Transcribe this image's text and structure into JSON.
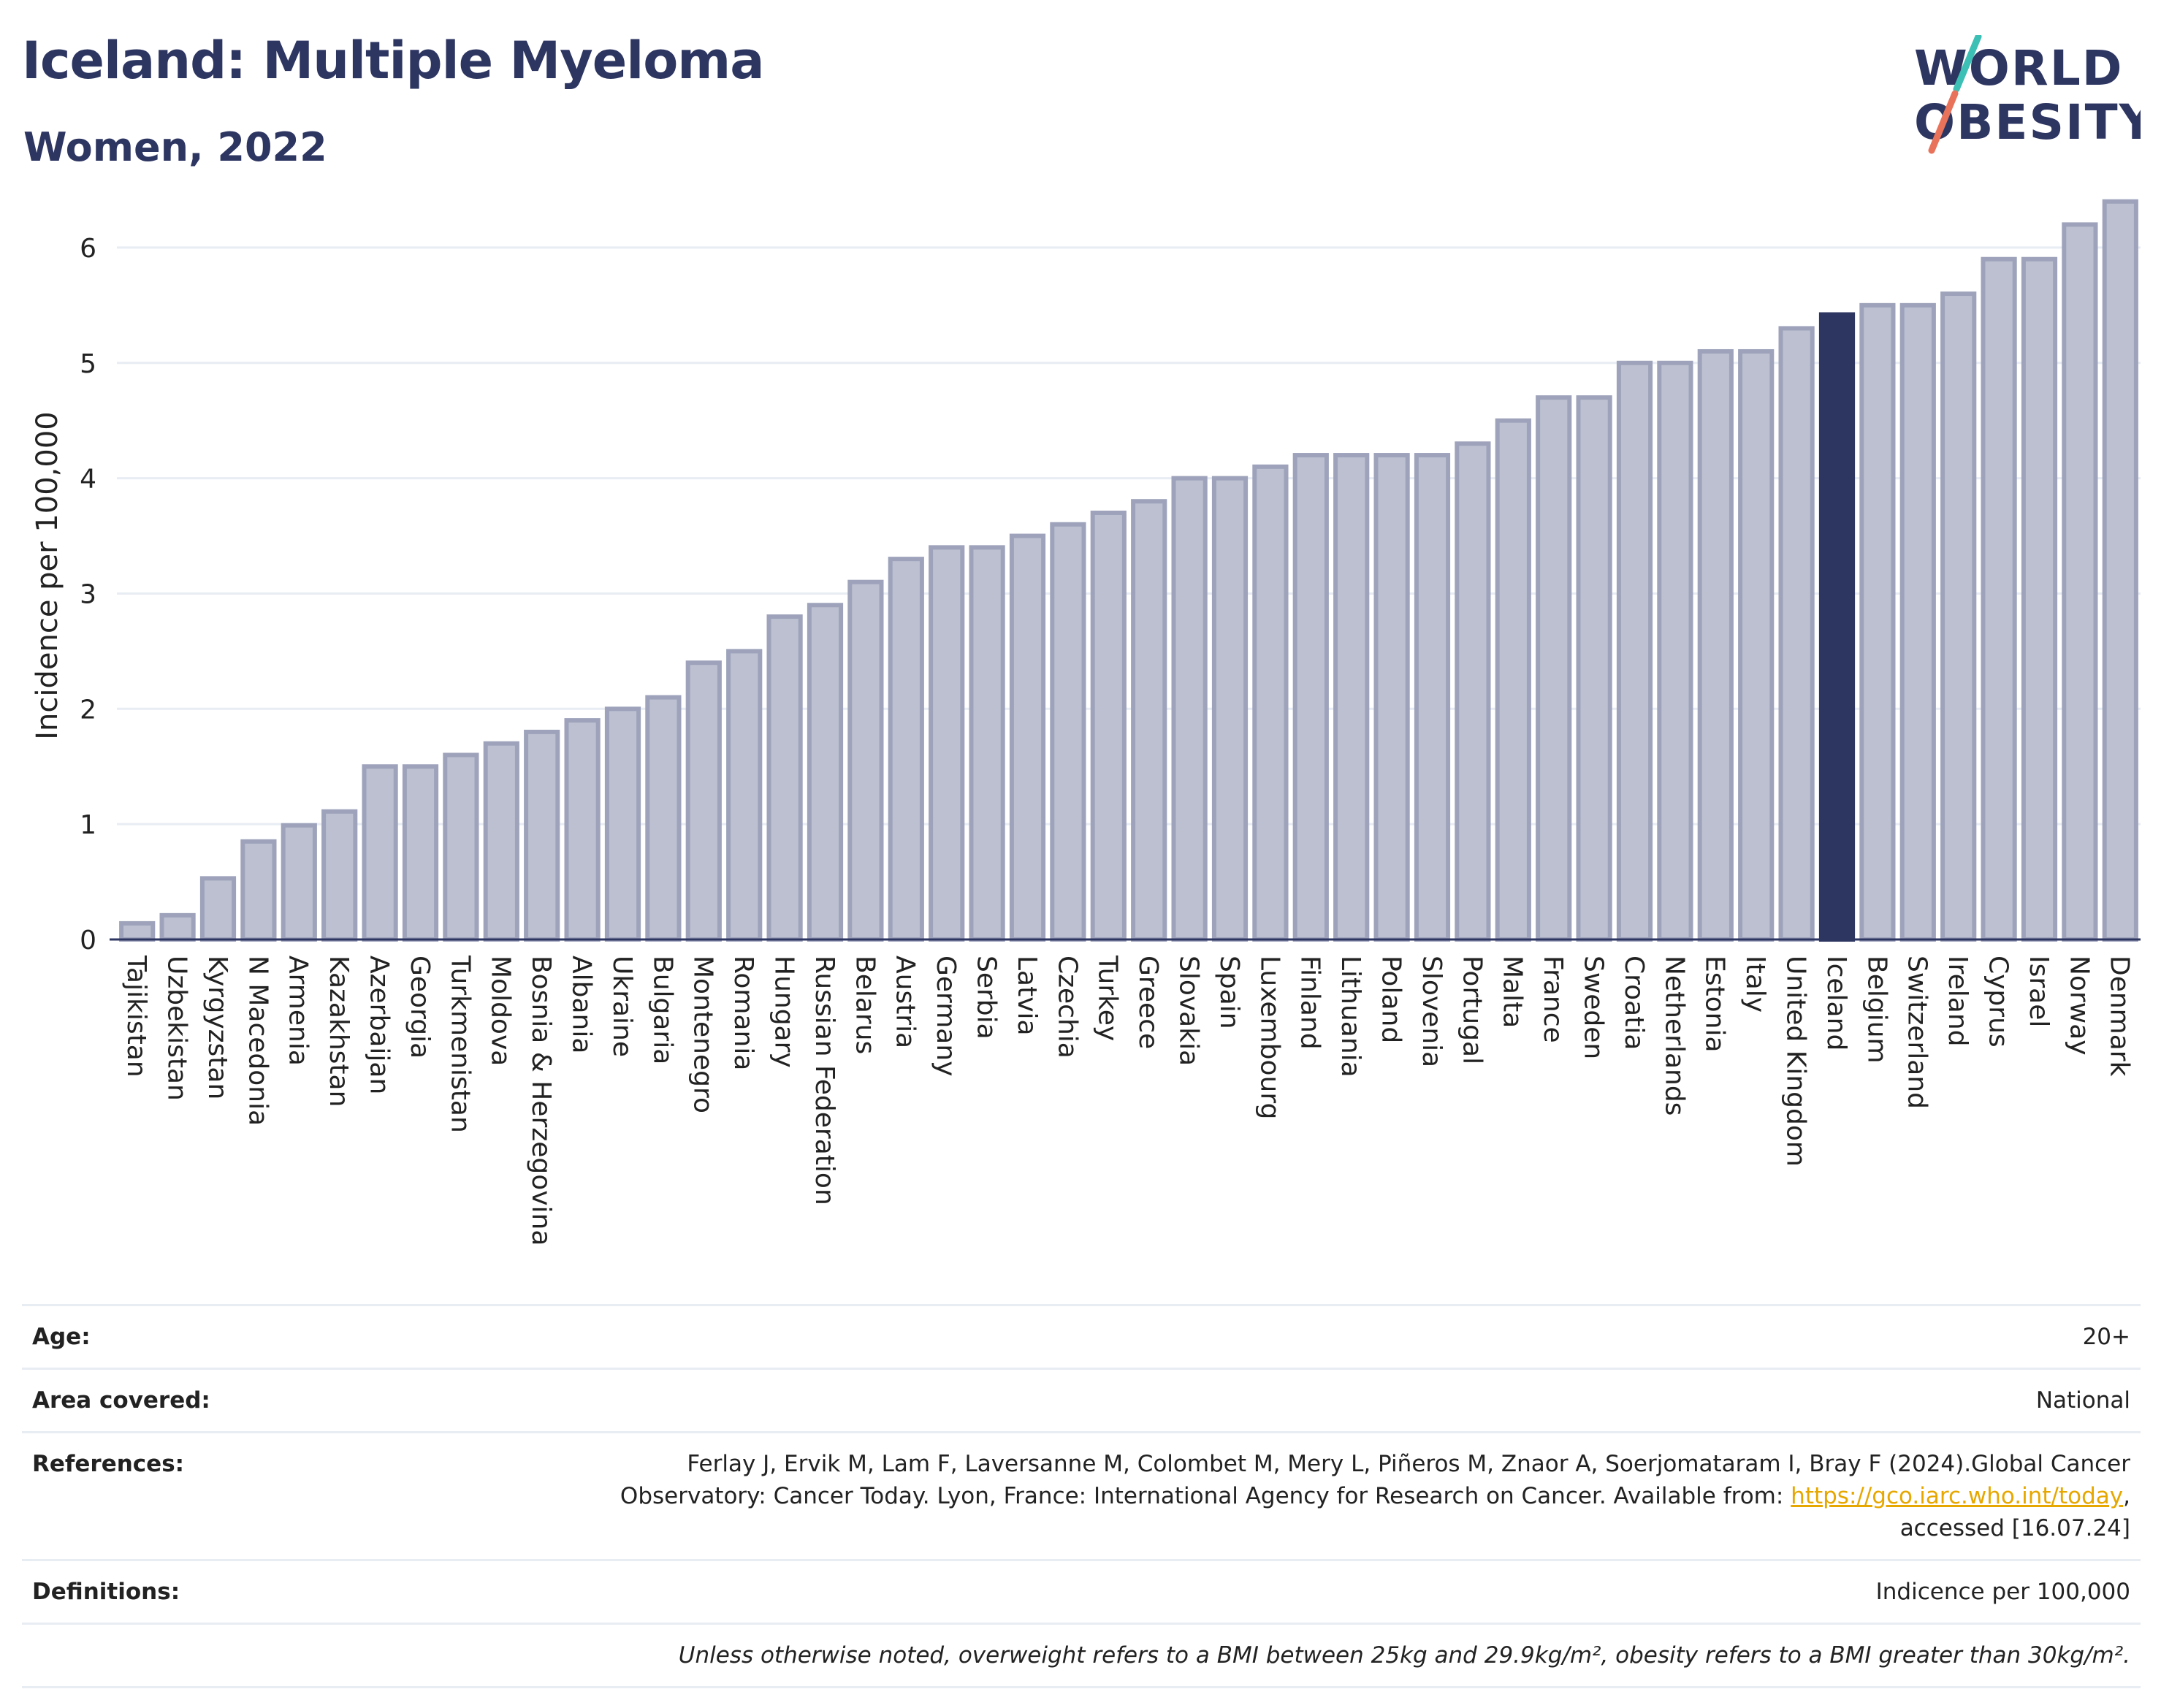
{
  "header": {
    "title": "Iceland: Multiple Myeloma",
    "subtitle": "Women, 2022",
    "logo_line1": "WORLD",
    "logo_line2": "OBESITY"
  },
  "colors": {
    "highlight": "#2d3561",
    "bar_fill": "#bcc0d0",
    "bar_stroke": "#9ea3bb",
    "logo_slash_teal": "#3cbfb4",
    "logo_slash_coral": "#e8735a",
    "link": "#e6a700"
  },
  "chart_data": {
    "type": "bar",
    "title": "Iceland: Multiple Myeloma",
    "subtitle": "Women, 2022",
    "ylabel": "Incidence per 100,000",
    "xlabel": "",
    "ylim": [
      0,
      6.5
    ],
    "yticks": [
      0,
      1,
      2,
      3,
      4,
      5,
      6
    ],
    "grid": "horizontal",
    "highlight": "Iceland",
    "categories": [
      "Tajikistan",
      "Uzbekistan",
      "Kyrgyzstan",
      "N Macedonia",
      "Armenia",
      "Kazakhstan",
      "Azerbaijan",
      "Georgia",
      "Turkmenistan",
      "Moldova",
      "Bosnia & Herzegovina",
      "Albania",
      "Ukraine",
      "Bulgaria",
      "Montenegro",
      "Romania",
      "Hungary",
      "Russian Federation",
      "Belarus",
      "Austria",
      "Germany",
      "Serbia",
      "Latvia",
      "Czechia",
      "Turkey",
      "Greece",
      "Slovakia",
      "Spain",
      "Luxembourg",
      "Finland",
      "Lithuania",
      "Poland",
      "Slovenia",
      "Portugal",
      "Malta",
      "France",
      "Sweden",
      "Croatia",
      "Netherlands",
      "Estonia",
      "Italy",
      "United Kingdom",
      "Iceland",
      "Belgium",
      "Switzerland",
      "Ireland",
      "Cyprus",
      "Israel",
      "Norway",
      "Denmark"
    ],
    "values": [
      0.14,
      0.21,
      0.53,
      0.85,
      0.99,
      1.11,
      1.5,
      1.5,
      1.6,
      1.7,
      1.8,
      1.9,
      2.0,
      2.1,
      2.4,
      2.5,
      2.8,
      2.9,
      3.1,
      3.3,
      3.4,
      3.4,
      3.5,
      3.6,
      3.7,
      3.8,
      4.0,
      4.0,
      4.1,
      4.2,
      4.2,
      4.2,
      4.2,
      4.3,
      4.5,
      4.7,
      4.7,
      5.0,
      5.0,
      5.1,
      5.1,
      5.3,
      5.42,
      5.5,
      5.5,
      5.6,
      5.9,
      5.9,
      6.2,
      6.4
    ]
  },
  "info": {
    "age_label": "Age:",
    "age_value": "20+",
    "area_label": "Area covered:",
    "area_value": "National",
    "references_label": "References:",
    "references_text_1": "Ferlay J, Ervik M, Lam F, Laversanne M, Colombet M, Mery L, Piñeros M, Znaor A, Soerjomataram I, Bray F (2024).Global Cancer",
    "references_text_2": "Observatory: Cancer Today. Lyon, France: International Agency for Research on Cancer. Available from:",
    "references_link": "https://gco.iarc.who.int/today",
    "references_text_3": "accessed [16.07.24]",
    "definitions_label": "Definitions:",
    "definitions_value": "Indicence per 100,000",
    "note": "Unless otherwise noted, overweight refers to a BMI between 25kg and 29.9kg/m², obesity refers to a BMI greater than 30kg/m²."
  }
}
